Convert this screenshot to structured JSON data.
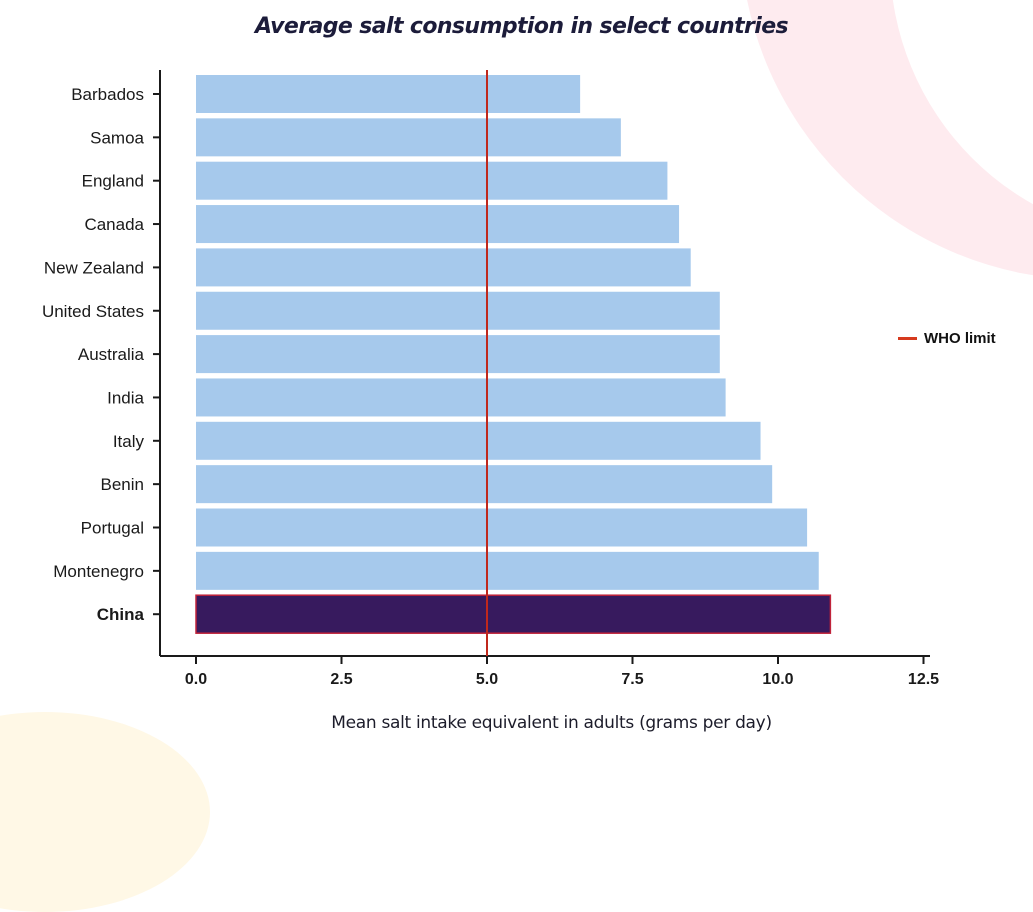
{
  "chart_data": {
    "type": "bar",
    "orientation": "horizontal",
    "title": "Average salt consumption in select countries",
    "xlabel": "Mean salt intake equivalent in adults (grams per day)",
    "ylabel": "",
    "categories": [
      "Barbados",
      "Samoa",
      "England",
      "Canada",
      "New Zealand",
      "United States",
      "Australia",
      "India",
      "Italy",
      "Benin",
      "Portugal",
      "Montenegro",
      "China"
    ],
    "values": [
      6.6,
      7.3,
      8.1,
      8.3,
      8.5,
      9.0,
      9.0,
      9.1,
      9.7,
      9.9,
      10.5,
      10.7,
      10.9
    ],
    "highlight": "China",
    "xlim": [
      0,
      12.5
    ],
    "x_ticks": [
      "0.0",
      "2.5",
      "5.0",
      "7.5",
      "10.0",
      "12.5"
    ],
    "x_tick_values": [
      0,
      2.5,
      5,
      7.5,
      10,
      12.5
    ],
    "grid": false,
    "reference_line": {
      "name": "WHO limit",
      "value": 5.0
    },
    "legend": {
      "entries": [
        "WHO limit"
      ],
      "placement": "right"
    },
    "colors": {
      "bar": "#a6c9ec",
      "highlight_bar": "#371a5e",
      "highlight_border": "#c0233a",
      "reference_line": "#c0281c",
      "axis": "#1a1a1a",
      "text": "#1a1a1a"
    }
  }
}
